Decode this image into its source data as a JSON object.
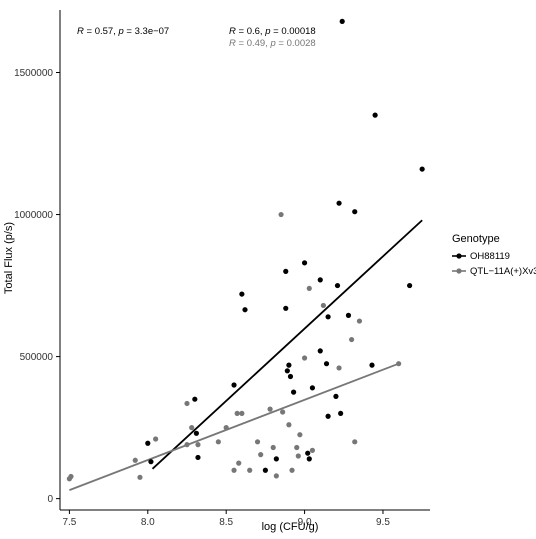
{
  "chart_data": {
    "type": "scatter",
    "xlabel": "log (CFU/g)",
    "ylabel": "Total Flux (p/s)",
    "xlim": [
      7.44,
      9.8
    ],
    "ylim": [
      -40000,
      1720000
    ],
    "x_ticks": [
      7.5,
      8.0,
      8.5,
      9.0,
      9.5
    ],
    "x_tick_labels": [
      "7.5",
      "8.0",
      "8.5",
      "9.0",
      "9.5"
    ],
    "y_ticks": [
      0,
      500000,
      1000000,
      1500000
    ],
    "y_tick_labels": [
      "0",
      "500000",
      "1000000",
      "1500000"
    ],
    "grid": false,
    "legend": {
      "title": "Genotype",
      "placement": "right"
    },
    "annotations": {
      "overall": {
        "R": "0.57",
        "p": "3.3e−07"
      },
      "series0": {
        "R": "0.6",
        "p": "0.00018"
      },
      "series1": {
        "R": "0.49",
        "p": "0.0028"
      }
    },
    "series": [
      {
        "name": "OH88119",
        "color": "#000000",
        "fit": {
          "x": [
            8.03,
            9.75
          ],
          "y": [
            105000,
            980000
          ]
        },
        "points": [
          [
            8.0,
            195000
          ],
          [
            8.02,
            130000
          ],
          [
            8.3,
            350000
          ],
          [
            8.31,
            230000
          ],
          [
            8.32,
            145000
          ],
          [
            8.55,
            400000
          ],
          [
            8.6,
            720000
          ],
          [
            8.62,
            665000
          ],
          [
            8.75,
            100000
          ],
          [
            8.82,
            140000
          ],
          [
            8.88,
            800000
          ],
          [
            8.88,
            670000
          ],
          [
            8.89,
            450000
          ],
          [
            8.9,
            470000
          ],
          [
            8.91,
            430000
          ],
          [
            8.93,
            375000
          ],
          [
            9.0,
            830000
          ],
          [
            9.02,
            160000
          ],
          [
            9.03,
            140000
          ],
          [
            9.05,
            390000
          ],
          [
            9.1,
            770000
          ],
          [
            9.1,
            520000
          ],
          [
            9.14,
            475000
          ],
          [
            9.15,
            640000
          ],
          [
            9.15,
            290000
          ],
          [
            9.2,
            360000
          ],
          [
            9.21,
            750000
          ],
          [
            9.22,
            1040000
          ],
          [
            9.23,
            300000
          ],
          [
            9.24,
            1680000
          ],
          [
            9.28,
            645000
          ],
          [
            9.32,
            1010000
          ],
          [
            9.43,
            470000
          ],
          [
            9.45,
            1350000
          ],
          [
            9.67,
            750000
          ],
          [
            9.75,
            1160000
          ]
        ]
      },
      {
        "name": "QTL−11A(+)Xv3",
        "color": "#777777",
        "fit": {
          "x": [
            7.5,
            9.6
          ],
          "y": [
            30000,
            475000
          ]
        },
        "points": [
          [
            7.5,
            70000
          ],
          [
            7.51,
            78000
          ],
          [
            7.92,
            135000
          ],
          [
            7.95,
            75000
          ],
          [
            8.05,
            210000
          ],
          [
            8.25,
            190000
          ],
          [
            8.25,
            335000
          ],
          [
            8.28,
            250000
          ],
          [
            8.32,
            190000
          ],
          [
            8.45,
            200000
          ],
          [
            8.5,
            250000
          ],
          [
            8.55,
            100000
          ],
          [
            8.57,
            300000
          ],
          [
            8.58,
            125000
          ],
          [
            8.6,
            300000
          ],
          [
            8.65,
            100000
          ],
          [
            8.7,
            200000
          ],
          [
            8.72,
            155000
          ],
          [
            8.78,
            315000
          ],
          [
            8.8,
            180000
          ],
          [
            8.82,
            80000
          ],
          [
            8.85,
            1000000
          ],
          [
            8.86,
            305000
          ],
          [
            8.9,
            260000
          ],
          [
            8.92,
            100000
          ],
          [
            8.95,
            180000
          ],
          [
            8.96,
            150000
          ],
          [
            8.97,
            225000
          ],
          [
            9.0,
            495000
          ],
          [
            9.03,
            740000
          ],
          [
            9.05,
            170000
          ],
          [
            9.12,
            680000
          ],
          [
            9.22,
            460000
          ],
          [
            9.3,
            560000
          ],
          [
            9.32,
            200000
          ],
          [
            9.35,
            625000
          ],
          [
            9.6,
            475000
          ]
        ]
      }
    ]
  }
}
